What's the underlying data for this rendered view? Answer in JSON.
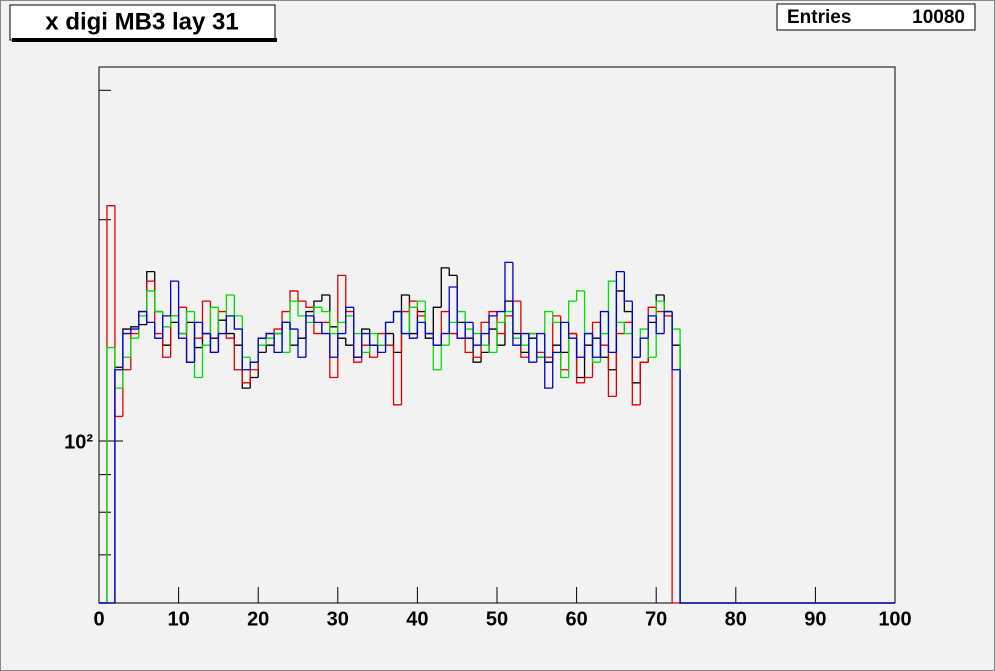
{
  "chart_data": {
    "type": "histogram",
    "title": "x digi MB3 lay 31",
    "stats": {
      "label": "Entries",
      "value": 10080
    },
    "bins": [
      0,
      1,
      2,
      3,
      4,
      5,
      6,
      7,
      8,
      9,
      10,
      11,
      12,
      13,
      14,
      15,
      16,
      17,
      18,
      19,
      20,
      21,
      22,
      23,
      24,
      25,
      26,
      27,
      28,
      29,
      30,
      31,
      32,
      33,
      34,
      35,
      36,
      37,
      38,
      39,
      40,
      41,
      42,
      43,
      44,
      45,
      46,
      47,
      48,
      49,
      50,
      51,
      52,
      53,
      54,
      55,
      56,
      57,
      58,
      59,
      60,
      61,
      62,
      63,
      64,
      65,
      66,
      67,
      68,
      69,
      70,
      71,
      72,
      73,
      74,
      75,
      76,
      77,
      78,
      79,
      80,
      81,
      82,
      83,
      84,
      85,
      86,
      87,
      88,
      89,
      90,
      91,
      92,
      93,
      94,
      95,
      96,
      97,
      98,
      99,
      100
    ],
    "series": [
      {
        "color": "#000000",
        "values": [
          0,
          0,
          126,
          142,
          143,
          144,
          170,
          150,
          135,
          145,
          140,
          145,
          134,
          140,
          138,
          146,
          140,
          135,
          118,
          122,
          132,
          135,
          140,
          145,
          135,
          138,
          150,
          155,
          158,
          143,
          138,
          135,
          130,
          142,
          135,
          135,
          140,
          132,
          158,
          140,
          150,
          138,
          152,
          172,
          168,
          145,
          138,
          128,
          132,
          142,
          135,
          155,
          140,
          132,
          138,
          130,
          128,
          135,
          132,
          140,
          122,
          135,
          138,
          130,
          125,
          160,
          150,
          120,
          128,
          145,
          158,
          150,
          135,
          0,
          0,
          0,
          0,
          0,
          0,
          0,
          0,
          0,
          0,
          0,
          0,
          0,
          0,
          0,
          0,
          0,
          0,
          0,
          0,
          0,
          0,
          0,
          0,
          0,
          0,
          0
        ]
      },
      {
        "color": "#dd0000",
        "values": [
          0,
          209,
          108,
          125,
          140,
          150,
          165,
          140,
          130,
          148,
          152,
          128,
          138,
          155,
          132,
          150,
          138,
          125,
          120,
          125,
          138,
          140,
          142,
          150,
          160,
          155,
          152,
          140,
          145,
          122,
          168,
          150,
          128,
          135,
          130,
          140,
          135,
          112,
          150,
          155,
          148,
          140,
          135,
          150,
          140,
          138,
          132,
          130,
          145,
          150,
          140,
          148,
          155,
          130,
          140,
          132,
          130,
          148,
          125,
          140,
          120,
          122,
          145,
          135,
          115,
          140,
          145,
          112,
          128,
          152,
          150,
          148,
          0,
          0,
          0,
          0,
          0,
          0,
          0,
          0,
          0,
          0,
          0,
          0,
          0,
          0,
          0,
          0,
          0,
          0,
          0,
          0,
          0,
          0,
          0,
          0,
          0,
          0,
          0,
          0
        ]
      },
      {
        "color": "#00dd00",
        "values": [
          0,
          134,
          118,
          130,
          138,
          148,
          160,
          150,
          143,
          148,
          140,
          150,
          122,
          135,
          152,
          140,
          158,
          148,
          130,
          128,
          135,
          138,
          140,
          132,
          155,
          148,
          145,
          152,
          150,
          140,
          145,
          148,
          140,
          132,
          140,
          135,
          145,
          150,
          140,
          152,
          155,
          140,
          125,
          135,
          145,
          150,
          142,
          140,
          135,
          132,
          145,
          150,
          138,
          135,
          140,
          130,
          150,
          145,
          122,
          155,
          160,
          140,
          128,
          140,
          165,
          145,
          140,
          130,
          142,
          130,
          155,
          150,
          142,
          0,
          0,
          0,
          0,
          0,
          0,
          0,
          0,
          0,
          0,
          0,
          0,
          0,
          0,
          0,
          0,
          0,
          0,
          0,
          0,
          0,
          0,
          0,
          0,
          0,
          0,
          0
        ]
      },
      {
        "color": "#0000cc",
        "values": [
          0,
          0,
          125,
          140,
          142,
          150,
          145,
          138,
          148,
          165,
          138,
          128,
          145,
          140,
          132,
          140,
          148,
          142,
          125,
          128,
          138,
          140,
          132,
          145,
          142,
          130,
          148,
          145,
          140,
          130,
          140,
          152,
          130,
          140,
          135,
          132,
          145,
          150,
          140,
          138,
          145,
          140,
          135,
          140,
          162,
          138,
          145,
          135,
          140,
          148,
          150,
          175,
          135,
          140,
          128,
          140,
          118,
          132,
          145,
          138,
          130,
          140,
          130,
          150,
          132,
          170,
          155,
          130,
          138,
          148,
          140,
          150,
          125,
          0,
          0,
          0,
          0,
          0,
          0,
          0,
          0,
          0,
          0,
          0,
          0,
          0,
          0,
          0,
          0,
          0,
          0,
          0,
          0,
          0,
          0,
          0,
          0,
          0,
          0,
          0
        ]
      }
    ],
    "xlim": [
      0,
      100
    ],
    "xticks": [
      0,
      10,
      20,
      30,
      40,
      50,
      60,
      70,
      80,
      90,
      100
    ],
    "ylim": [
      60.2,
      322.7
    ],
    "log_y": true,
    "yticks": [
      {
        "value": 100,
        "label": "10²"
      }
    ],
    "yminor_ticks": [
      70,
      80,
      90,
      200,
      300
    ]
  }
}
